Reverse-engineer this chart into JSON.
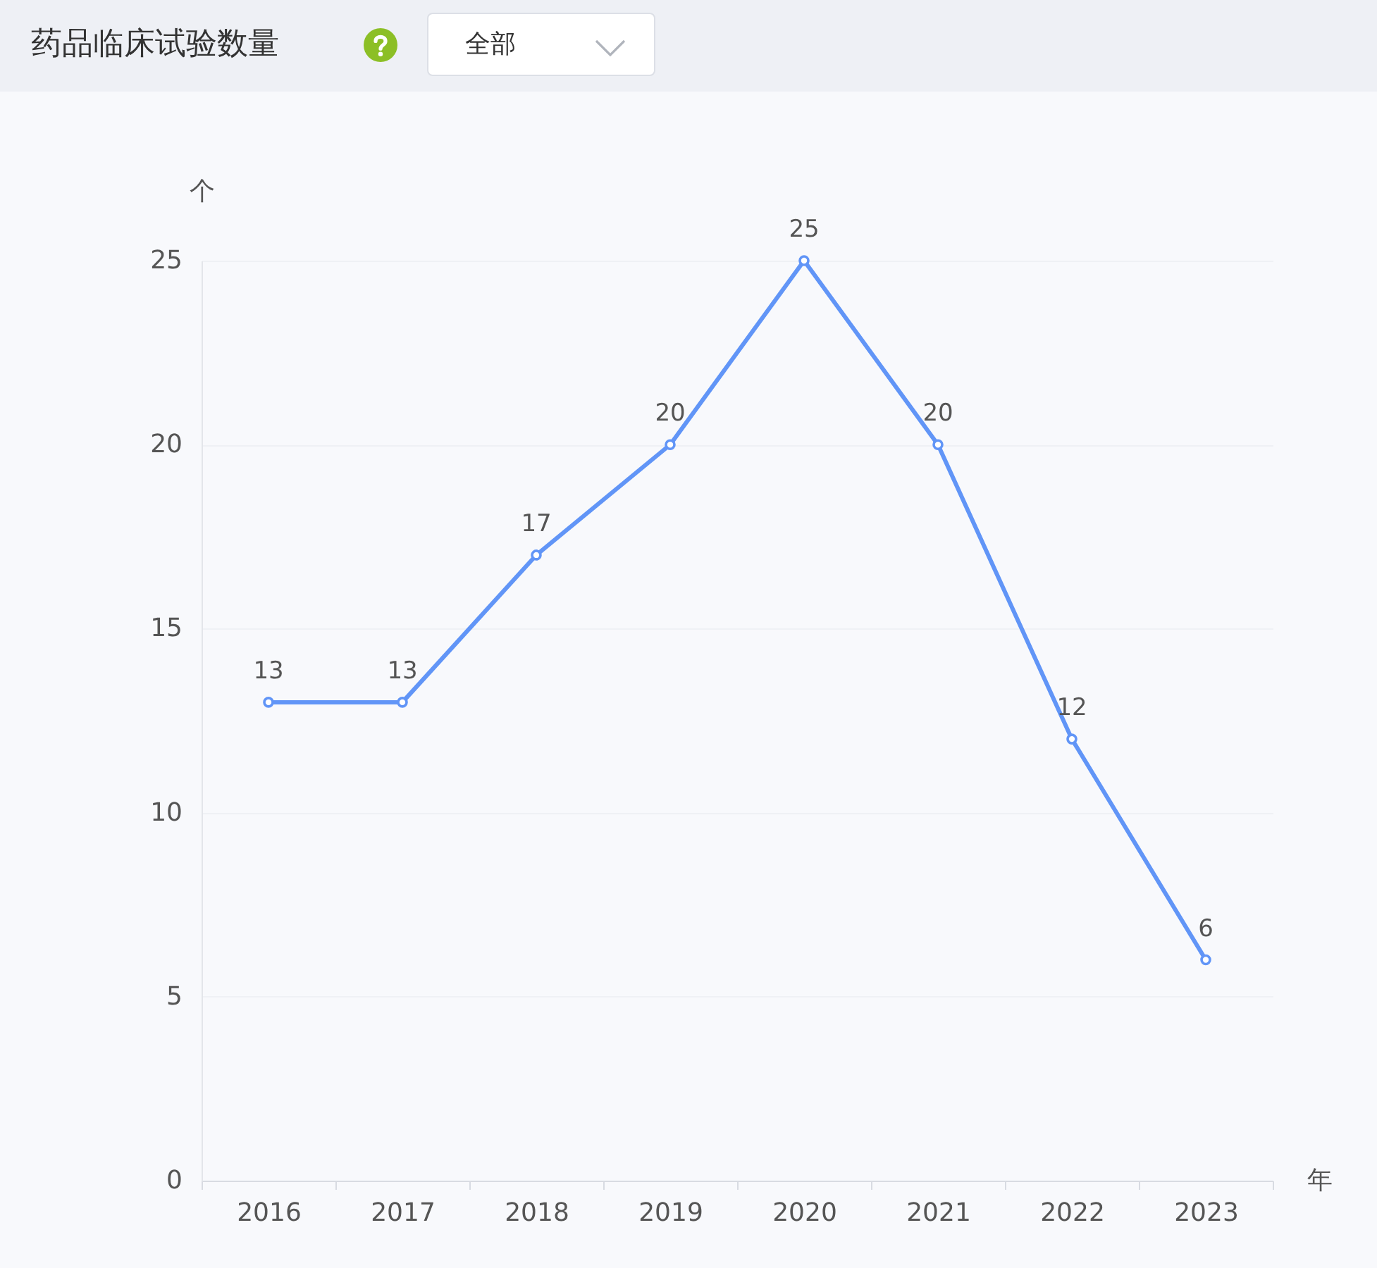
{
  "chart_data": {
    "type": "line",
    "title": "药品临床试验数量",
    "annotations": [
      "全部"
    ],
    "xlabel": "年",
    "ylabel": "个",
    "categories": [
      "2016",
      "2017",
      "2018",
      "2019",
      "2020",
      "2021",
      "2022",
      "2023"
    ],
    "series": [
      {
        "color": "#6195f7",
        "values": [
          13,
          13,
          17,
          20,
          25,
          20,
          12,
          6
        ]
      }
    ],
    "ylim": [
      0,
      25
    ],
    "yticks": [
      0,
      5,
      10,
      15,
      20,
      25
    ],
    "grid": "y",
    "marker": "circle",
    "line_style": "solid",
    "data_labels": true,
    "legend": false
  }
}
